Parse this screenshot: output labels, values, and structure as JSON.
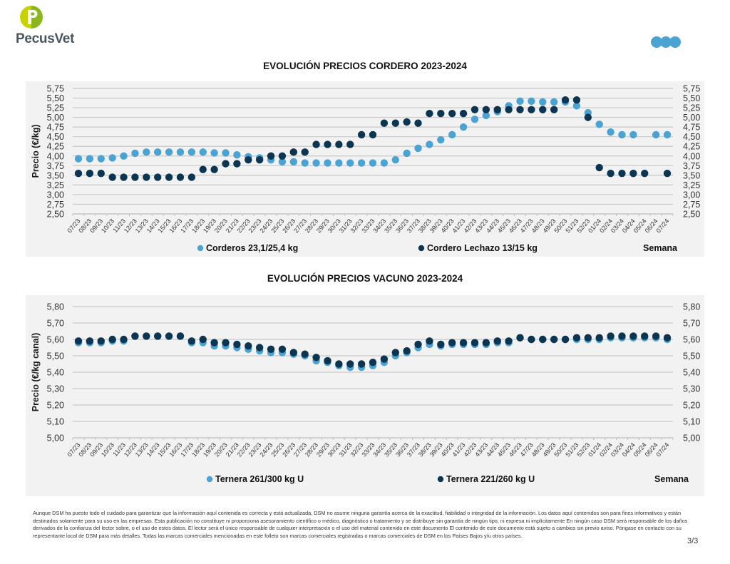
{
  "header": {
    "brand_name": "PecusVet",
    "brand_colors": {
      "logo_light": "#c6d300",
      "logo_dark": "#8cb61e",
      "text": "#4a5560"
    },
    "partner_logo_icon": "three-blue-circles-icon",
    "partner_color": "#4ba3d4"
  },
  "colors": {
    "series_light": "#4ba3d4",
    "series_dark": "#0b3551",
    "panel_bg": "#f2f2f2",
    "grid": "#c8c8c8"
  },
  "chart_data": [
    {
      "type": "scatter",
      "title": "EVOLUCIÓN PRECIOS CORDERO 2023-2024",
      "xlabel": "Semana",
      "ylabel": "Precio (€/kg)",
      "ylim": [
        2.5,
        5.75
      ],
      "ytick_step": 0.25,
      "yticks": [
        "2,50",
        "2,75",
        "3,00",
        "3,25",
        "3,50",
        "3,75",
        "4,00",
        "4,25",
        "4,50",
        "4,75",
        "5,00",
        "5,25",
        "5,50",
        "5,75"
      ],
      "secondary_yaxis": true,
      "grid": true,
      "legend_position": "bottom",
      "categories": [
        "07/23",
        "08/23",
        "09/23",
        "10/23",
        "11/23",
        "12/23",
        "13/23",
        "14/23",
        "15/23",
        "16/23",
        "17/23",
        "18/23",
        "19/23",
        "20/23",
        "21/23",
        "22/23",
        "23/23",
        "24/23",
        "25/23",
        "26/23",
        "27/23",
        "28/23",
        "29/23",
        "30/23",
        "31/23",
        "32/23",
        "33/23",
        "34/23",
        "35/23",
        "36/23",
        "37/23",
        "38/23",
        "39/23",
        "40/23",
        "41/23",
        "42/23",
        "43/23",
        "44/23",
        "45/23",
        "46/23",
        "47/23",
        "48/23",
        "49/23",
        "50/23",
        "51/23",
        "52/23",
        "01/24",
        "02/24",
        "03/24",
        "04/24",
        "05/24",
        "06/24",
        "07/24"
      ],
      "series": [
        {
          "name": "Corderos 23,1/25,4 kg",
          "color": "#4ba3d4",
          "values": [
            3.93,
            3.93,
            3.93,
            3.95,
            4.0,
            4.07,
            4.1,
            4.1,
            4.1,
            4.1,
            4.1,
            4.1,
            4.08,
            4.08,
            4.03,
            3.98,
            3.95,
            3.9,
            3.85,
            3.85,
            3.82,
            3.82,
            3.82,
            3.82,
            3.82,
            3.82,
            3.82,
            3.82,
            3.9,
            4.07,
            4.2,
            4.3,
            4.42,
            4.55,
            4.75,
            4.95,
            5.05,
            5.15,
            5.3,
            5.42,
            5.42,
            5.4,
            5.4,
            5.4,
            5.3,
            5.12,
            4.82,
            4.62,
            4.55,
            4.55,
            null,
            4.55,
            4.55
          ]
        },
        {
          "name": "Cordero Lechazo 13/15 kg",
          "color": "#0b3551",
          "values": [
            3.55,
            3.55,
            3.55,
            3.45,
            3.45,
            3.45,
            3.45,
            3.45,
            3.45,
            3.45,
            3.45,
            3.65,
            3.65,
            3.8,
            3.8,
            3.9,
            3.9,
            4.0,
            4.0,
            4.1,
            4.1,
            4.3,
            4.3,
            4.3,
            4.3,
            4.55,
            4.55,
            4.85,
            4.85,
            4.88,
            4.85,
            5.1,
            5.1,
            5.1,
            5.1,
            5.2,
            5.2,
            5.2,
            5.2,
            5.2,
            5.2,
            5.2,
            5.2,
            5.45,
            5.45,
            5.0,
            3.7,
            3.55,
            3.55,
            3.55,
            3.55,
            null,
            3.55
          ]
        }
      ]
    },
    {
      "type": "scatter",
      "title": "EVOLUCIÓN PRECIOS VACUNO 2023-2024",
      "xlabel": "Semana",
      "ylabel": "Precio (€/kg canal)",
      "ylim": [
        5.0,
        5.8
      ],
      "ytick_step": 0.1,
      "yticks": [
        "5,00",
        "5,10",
        "5,20",
        "5,30",
        "5,40",
        "5,50",
        "5,60",
        "5,70",
        "5,80"
      ],
      "secondary_yaxis": true,
      "grid": true,
      "legend_position": "bottom",
      "categories": [
        "07/23",
        "08/23",
        "09/23",
        "10/23",
        "11/23",
        "12/23",
        "13/23",
        "14/23",
        "15/23",
        "16/23",
        "17/23",
        "18/23",
        "19/23",
        "20/23",
        "21/23",
        "22/23",
        "23/23",
        "24/23",
        "25/23",
        "26/23",
        "27/23",
        "28/23",
        "29/23",
        "30/23",
        "31/23",
        "32/23",
        "33/23",
        "34/23",
        "35/23",
        "36/23",
        "37/23",
        "38/23",
        "39/23",
        "40/23",
        "41/23",
        "42/23",
        "43/23",
        "44/23",
        "45/23",
        "46/23",
        "47/23",
        "48/23",
        "49/23",
        "50/23",
        "51/23",
        "52/23",
        "01/24",
        "02/24",
        "03/24",
        "04/24",
        "05/24",
        "06/24",
        "07/24"
      ],
      "series": [
        {
          "name": "Ternera 261/300 kg U",
          "color": "#4ba3d4",
          "values": [
            5.58,
            5.58,
            5.58,
            5.59,
            5.59,
            5.62,
            5.62,
            5.62,
            5.62,
            5.62,
            5.58,
            5.58,
            5.56,
            5.56,
            5.55,
            5.54,
            5.53,
            5.52,
            5.52,
            5.51,
            5.5,
            5.47,
            5.46,
            5.44,
            5.43,
            5.43,
            5.44,
            5.46,
            5.5,
            5.52,
            5.55,
            5.57,
            5.56,
            5.57,
            5.57,
            5.57,
            5.57,
            5.58,
            5.58,
            5.61,
            5.6,
            5.6,
            5.6,
            5.6,
            5.6,
            5.6,
            5.6,
            5.61,
            5.61,
            5.61,
            5.61,
            5.61,
            5.6
          ]
        },
        {
          "name": "Ternera 221/260 kg U",
          "color": "#0b3551",
          "values": [
            5.59,
            5.59,
            5.59,
            5.6,
            5.6,
            5.62,
            5.62,
            5.62,
            5.62,
            5.62,
            5.59,
            5.6,
            5.58,
            5.58,
            5.57,
            5.56,
            5.55,
            5.54,
            5.54,
            5.52,
            5.51,
            5.49,
            5.47,
            5.45,
            5.45,
            5.45,
            5.46,
            5.48,
            5.52,
            5.53,
            5.57,
            5.59,
            5.57,
            5.58,
            5.58,
            5.58,
            5.58,
            5.59,
            5.59,
            5.61,
            5.6,
            5.6,
            5.6,
            5.6,
            5.61,
            5.61,
            5.61,
            5.62,
            5.62,
            5.62,
            5.62,
            5.62,
            5.61
          ]
        }
      ]
    }
  ],
  "footer": {
    "disclaimer": "Aunque DSM ha puesto todo el cuidado para garantizar que la información aquí contenida es correcta y está actualizada, DSM no asume ninguna garantía acerca de la exactitud, fiabilidad o integridad de la información. Los datos aquí contenidos son para fines informativos y están destinados solamente para su uso en las empresas. Esta publicación no constituye ni proporciona asesoramiento científico o médico, diagnóstico o tratamiento y se distribuye sin garantía de ningún tipo, ni expresa ni implícitamente En ningún caso DSM será responsable de los daños derivados de la confianza del lector sobre, o el uso de estos datos. El lector será el único responsable de cualquier interpretación o el uso del material contenido en este documento El contenido de este documento está sujeto a cambios sin previo aviso. Póngase en contacto con su representante local de DSM para más detalles. Todas las marcas comerciales mencionadas en este folleto son marcas comerciales registradas o marcas comerciales de DSM en los Países Bajos y/u otros países.",
    "page_number": "3/3"
  }
}
